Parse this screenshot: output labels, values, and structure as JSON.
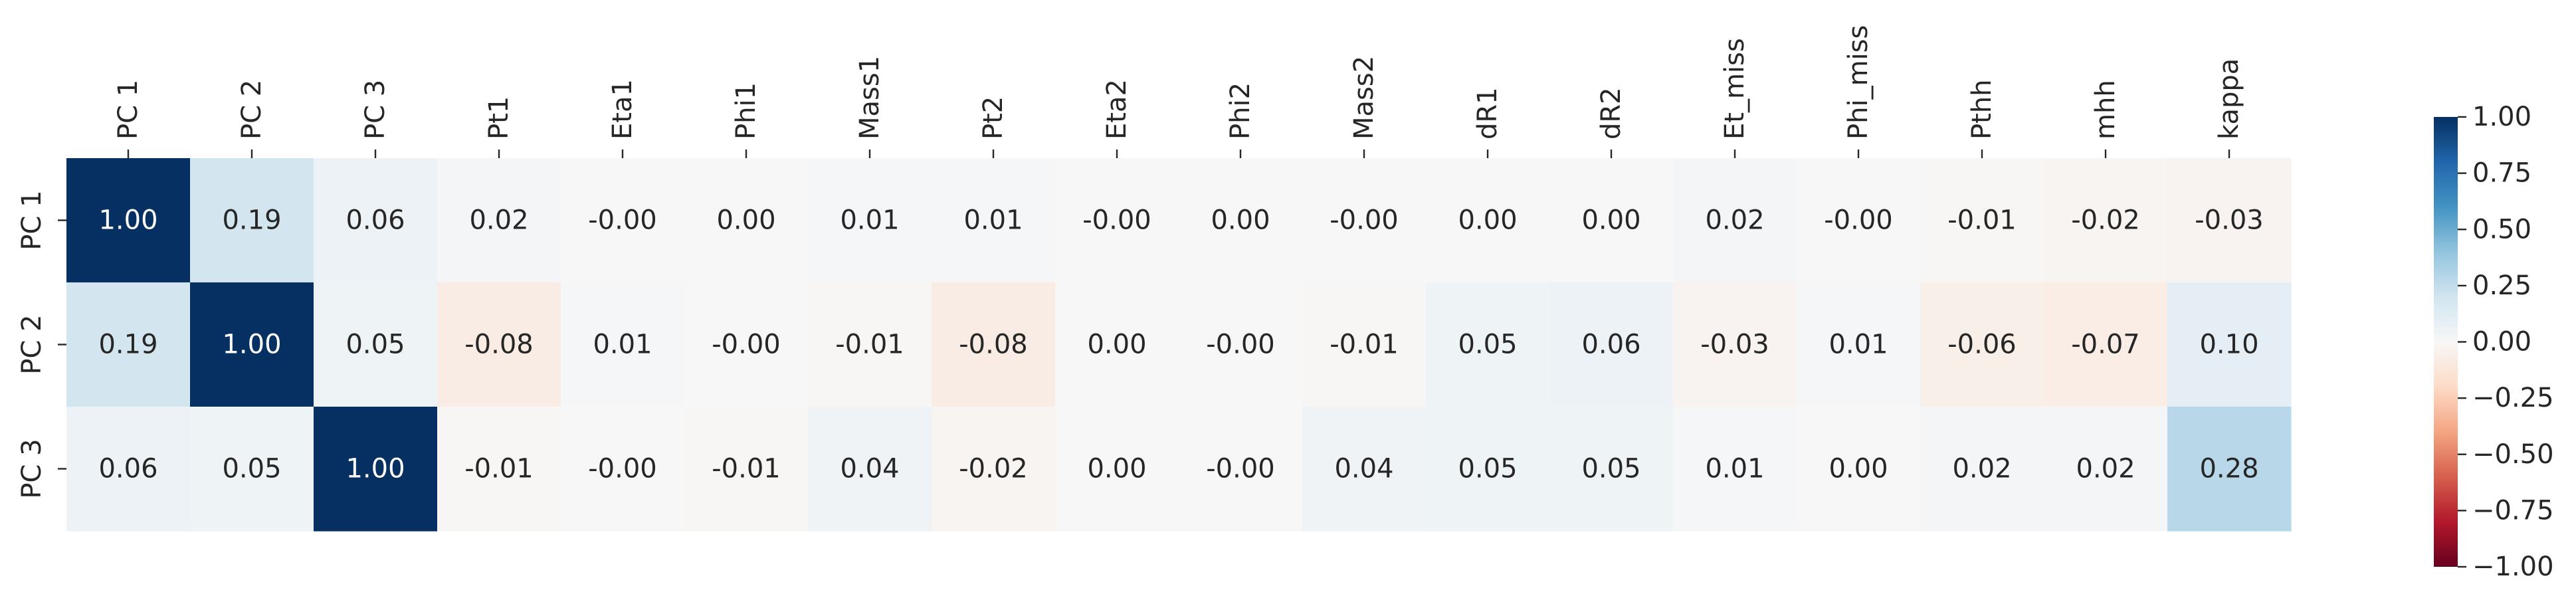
{
  "chart_data": {
    "type": "heatmap",
    "x_labels": [
      "PC 1",
      "PC 2",
      "PC 3",
      "Pt1",
      "Eta1",
      "Phi1",
      "Mass1",
      "Pt2",
      "Eta2",
      "Phi2",
      "Mass2",
      "dR1",
      "dR2",
      "Et_miss",
      "Phi_miss",
      "Pthh",
      "mhh",
      "kappa"
    ],
    "y_labels": [
      "PC 1",
      "PC 2",
      "PC 3"
    ],
    "values": [
      [
        1.0,
        0.19,
        0.06,
        0.02,
        -0.0,
        0.0,
        0.01,
        0.01,
        -0.0,
        0.0,
        -0.0,
        0.0,
        0.0,
        0.02,
        -0.0,
        -0.01,
        -0.02,
        -0.03
      ],
      [
        0.19,
        1.0,
        0.05,
        -0.08,
        0.01,
        -0.0,
        -0.01,
        -0.08,
        0.0,
        -0.0,
        -0.01,
        0.05,
        0.06,
        -0.03,
        0.01,
        -0.06,
        -0.07,
        0.1
      ],
      [
        0.06,
        0.05,
        1.0,
        -0.01,
        -0.0,
        -0.01,
        0.04,
        -0.02,
        0.0,
        -0.0,
        0.04,
        0.05,
        0.05,
        0.01,
        0.0,
        0.02,
        0.02,
        0.28
      ]
    ],
    "cell_labels": [
      [
        "1.00",
        "0.19",
        "0.06",
        "0.02",
        "-0.00",
        "0.00",
        "0.01",
        "0.01",
        "-0.00",
        "0.00",
        "-0.00",
        "0.00",
        "0.00",
        "0.02",
        "-0.00",
        "-0.01",
        "-0.02",
        "-0.03"
      ],
      [
        "0.19",
        "1.00",
        "0.05",
        "-0.08",
        "0.01",
        "-0.00",
        "-0.01",
        "-0.08",
        "0.00",
        "-0.00",
        "-0.01",
        "0.05",
        "0.06",
        "-0.03",
        "0.01",
        "-0.06",
        "-0.07",
        "0.10"
      ],
      [
        "0.06",
        "0.05",
        "1.00",
        "-0.01",
        "-0.00",
        "-0.01",
        "0.04",
        "-0.02",
        "0.00",
        "-0.00",
        "0.04",
        "0.05",
        "0.05",
        "0.01",
        "0.00",
        "0.02",
        "0.02",
        "0.28"
      ]
    ],
    "colorbar": {
      "range": [
        -1.0,
        1.0
      ],
      "ticks": [
        1.0,
        0.75,
        0.5,
        0.25,
        0.0,
        -0.25,
        -0.5,
        -0.75,
        -1.0
      ],
      "tick_labels": [
        "1.00",
        "0.75",
        "0.50",
        "0.25",
        "0.00",
        "−0.25",
        "−0.50",
        "−0.75",
        "−1.00"
      ],
      "colormap": "RdBu"
    },
    "colormap_stops": [
      "#67001f",
      "#b2182b",
      "#d6604d",
      "#f4a582",
      "#fddbc7",
      "#f7f7f7",
      "#d1e5f0",
      "#92c5de",
      "#4393c3",
      "#2166ac",
      "#053061"
    ],
    "text_colors": {
      "dark_cell": "#ffffff",
      "light_cell": "#262626"
    },
    "title": "",
    "xlabel": "",
    "ylabel": ""
  }
}
